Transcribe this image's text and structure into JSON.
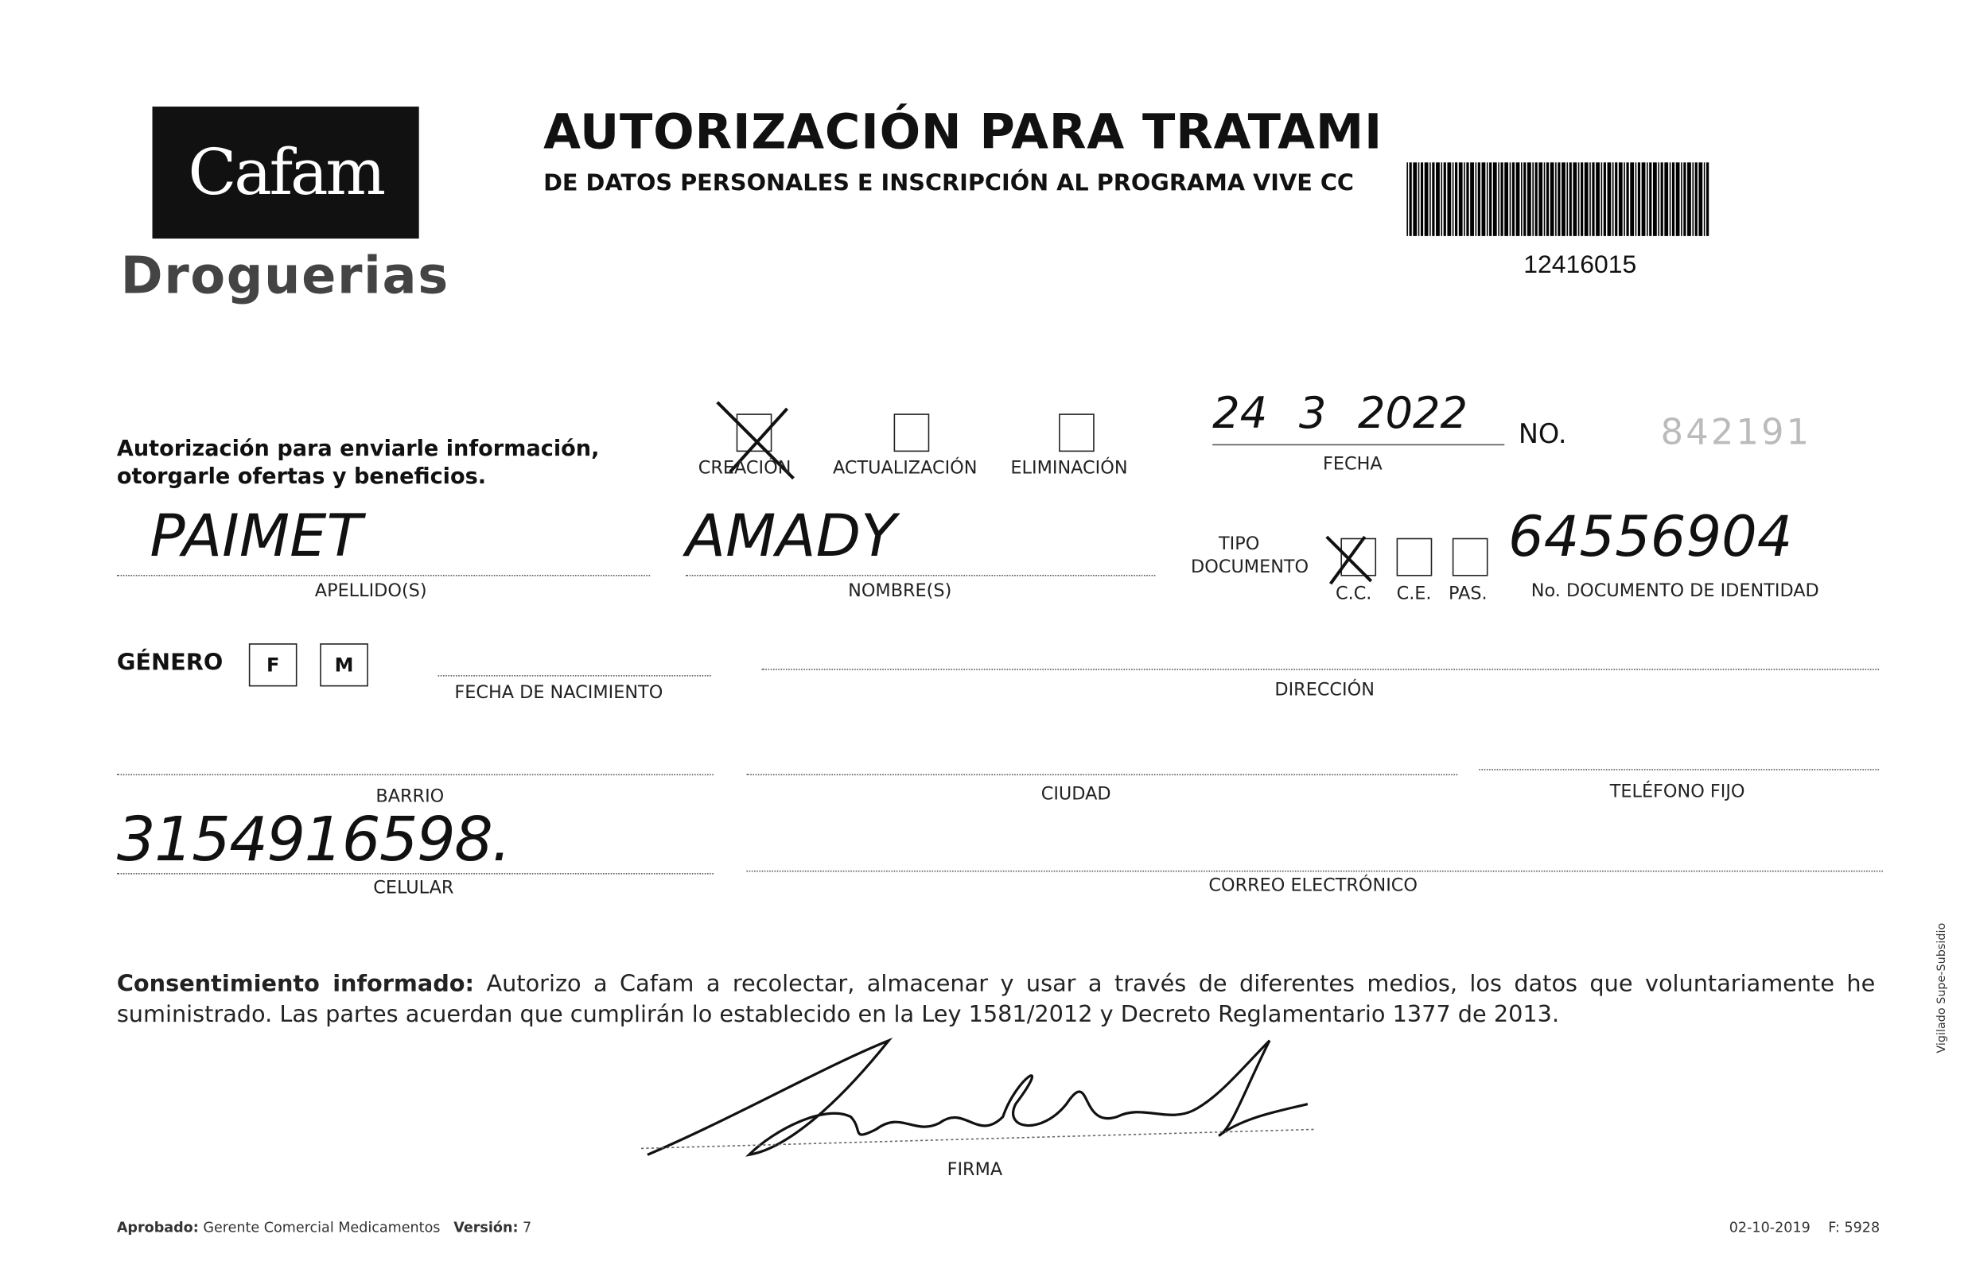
{
  "header": {
    "logo_text": "Cafam",
    "logo_sub": "Droguerias",
    "title": "AUTORIZACIÓN PARA TRATAMIENTO",
    "subtitle": "DE DATOS PERSONALES E INSCRIPCIÓN AL PROGRAMA VIVE CC",
    "barcode_number": "12416015"
  },
  "form": {
    "intro": "Autorización para enviarle información, otorgarle ofertas y beneficios.",
    "options": {
      "creacion": "CREACIÓN",
      "actualizacion": "ACTUALIZACIÓN",
      "eliminacion": "ELIMINACIÓN",
      "selected": "CREACIÓN"
    },
    "fecha_label": "FECHA",
    "fecha_value": "24 3 2022",
    "no_label": "NO.",
    "no_value": "842191",
    "apellidos_label": "APELLIDO(S)",
    "apellidos_value": "PAIMET",
    "nombres_label": "NOMBRE(S)",
    "nombres_value": "AMADY",
    "tipo_documento_label": "TIPO DOCUMENTO",
    "doc_types": {
      "cc": "C.C.",
      "ce": "C.E.",
      "pas": "PAS.",
      "selected": "C.C."
    },
    "documento_label": "No. DOCUMENTO DE IDENTIDAD",
    "documento_value": "64556904",
    "genero_label": "GÉNERO",
    "genero_f": "F",
    "genero_m": "M",
    "nacimiento_label": "FECHA DE NACIMIENTO",
    "direccion_label": "DIRECCIÓN",
    "barrio_label": "BARRIO",
    "ciudad_label": "CIUDAD",
    "telefono_label": "TELÉFONO FIJO",
    "celular_label": "CELULAR",
    "celular_value": "3154916598.",
    "correo_label": "CORREO ELECTRÓNICO"
  },
  "consent": {
    "heading": "Consentimiento informado:",
    "text": " Autorizo a Cafam a recolectar, almacenar y usar a través de diferentes medios, los datos que voluntariamente he suministrado. Las partes acuerdan que cumplirán lo establecido en la Ley 1581/2012 y Decreto Reglamentario 1377 de 2013."
  },
  "firma_label": "FIRMA",
  "footer": {
    "aprobado_label": "Aprobado:",
    "aprobado_value": "Gerente Comercial Medicamentos",
    "version_label": "Versión:",
    "version_value": "7",
    "date": "02-10-2019",
    "code": "F: 5928",
    "side_text": "Vigilado Supe-Subsidio"
  }
}
